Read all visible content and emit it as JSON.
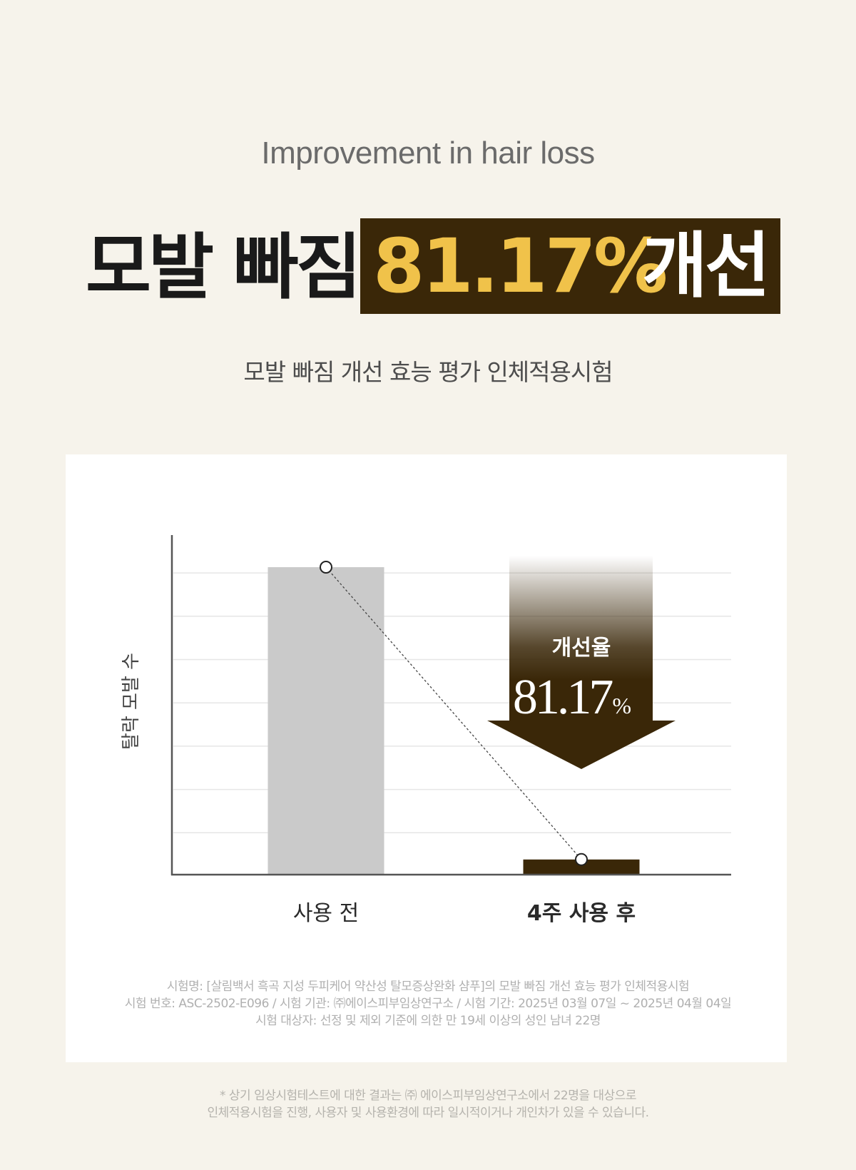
{
  "eyebrow": "Improvement in hair loss",
  "headline": {
    "prefix": "모발 빠짐",
    "percent": "81.17%",
    "suffix": "개선"
  },
  "subtitle": "모발 빠짐 개선 효능 평가 인체적용시험",
  "colors": {
    "background": "#f6f3eb",
    "brand_dark": "#3a2708",
    "accent_gold": "#f0c24a",
    "bar_before": "#cacaca"
  },
  "chart_data": {
    "type": "bar",
    "ylabel": "탈락 모발 수",
    "categories": [
      "사용 전",
      "4주 사용 후"
    ],
    "values": [
      7.1,
      0.35
    ],
    "ylim": [
      0,
      8
    ],
    "grid": true,
    "connector_line": "dotted",
    "annotation": {
      "label": "개선율",
      "value": "81.17",
      "unit": "%"
    }
  },
  "notes": [
    "시험명: [살림백서 흑곡 지성 두피케어 약산성 탈모증상완화 샴푸]의 모발 빠짐 개선 효능 평가 인체적용시험",
    "시험 번호: ASC-2502-E096 / 시험 기관: ㈜에이스피부임상연구소 / 시험 기간: 2025년 03월 07일 ~ 2025년 04월 04일",
    "시험 대상자: 선정 및 제외 기준에 의한 만 19세 이상의 성인 남녀 22명"
  ],
  "disclaimer": [
    "* 상기 임상시험테스트에 대한 결과는 ㈜ 에이스피부임상연구소에서 22명을 대상으로",
    "인체적용시험을 진행, 사용자 및 사용환경에 따라 일시적이거나 개인차가 있을 수 있습니다."
  ]
}
